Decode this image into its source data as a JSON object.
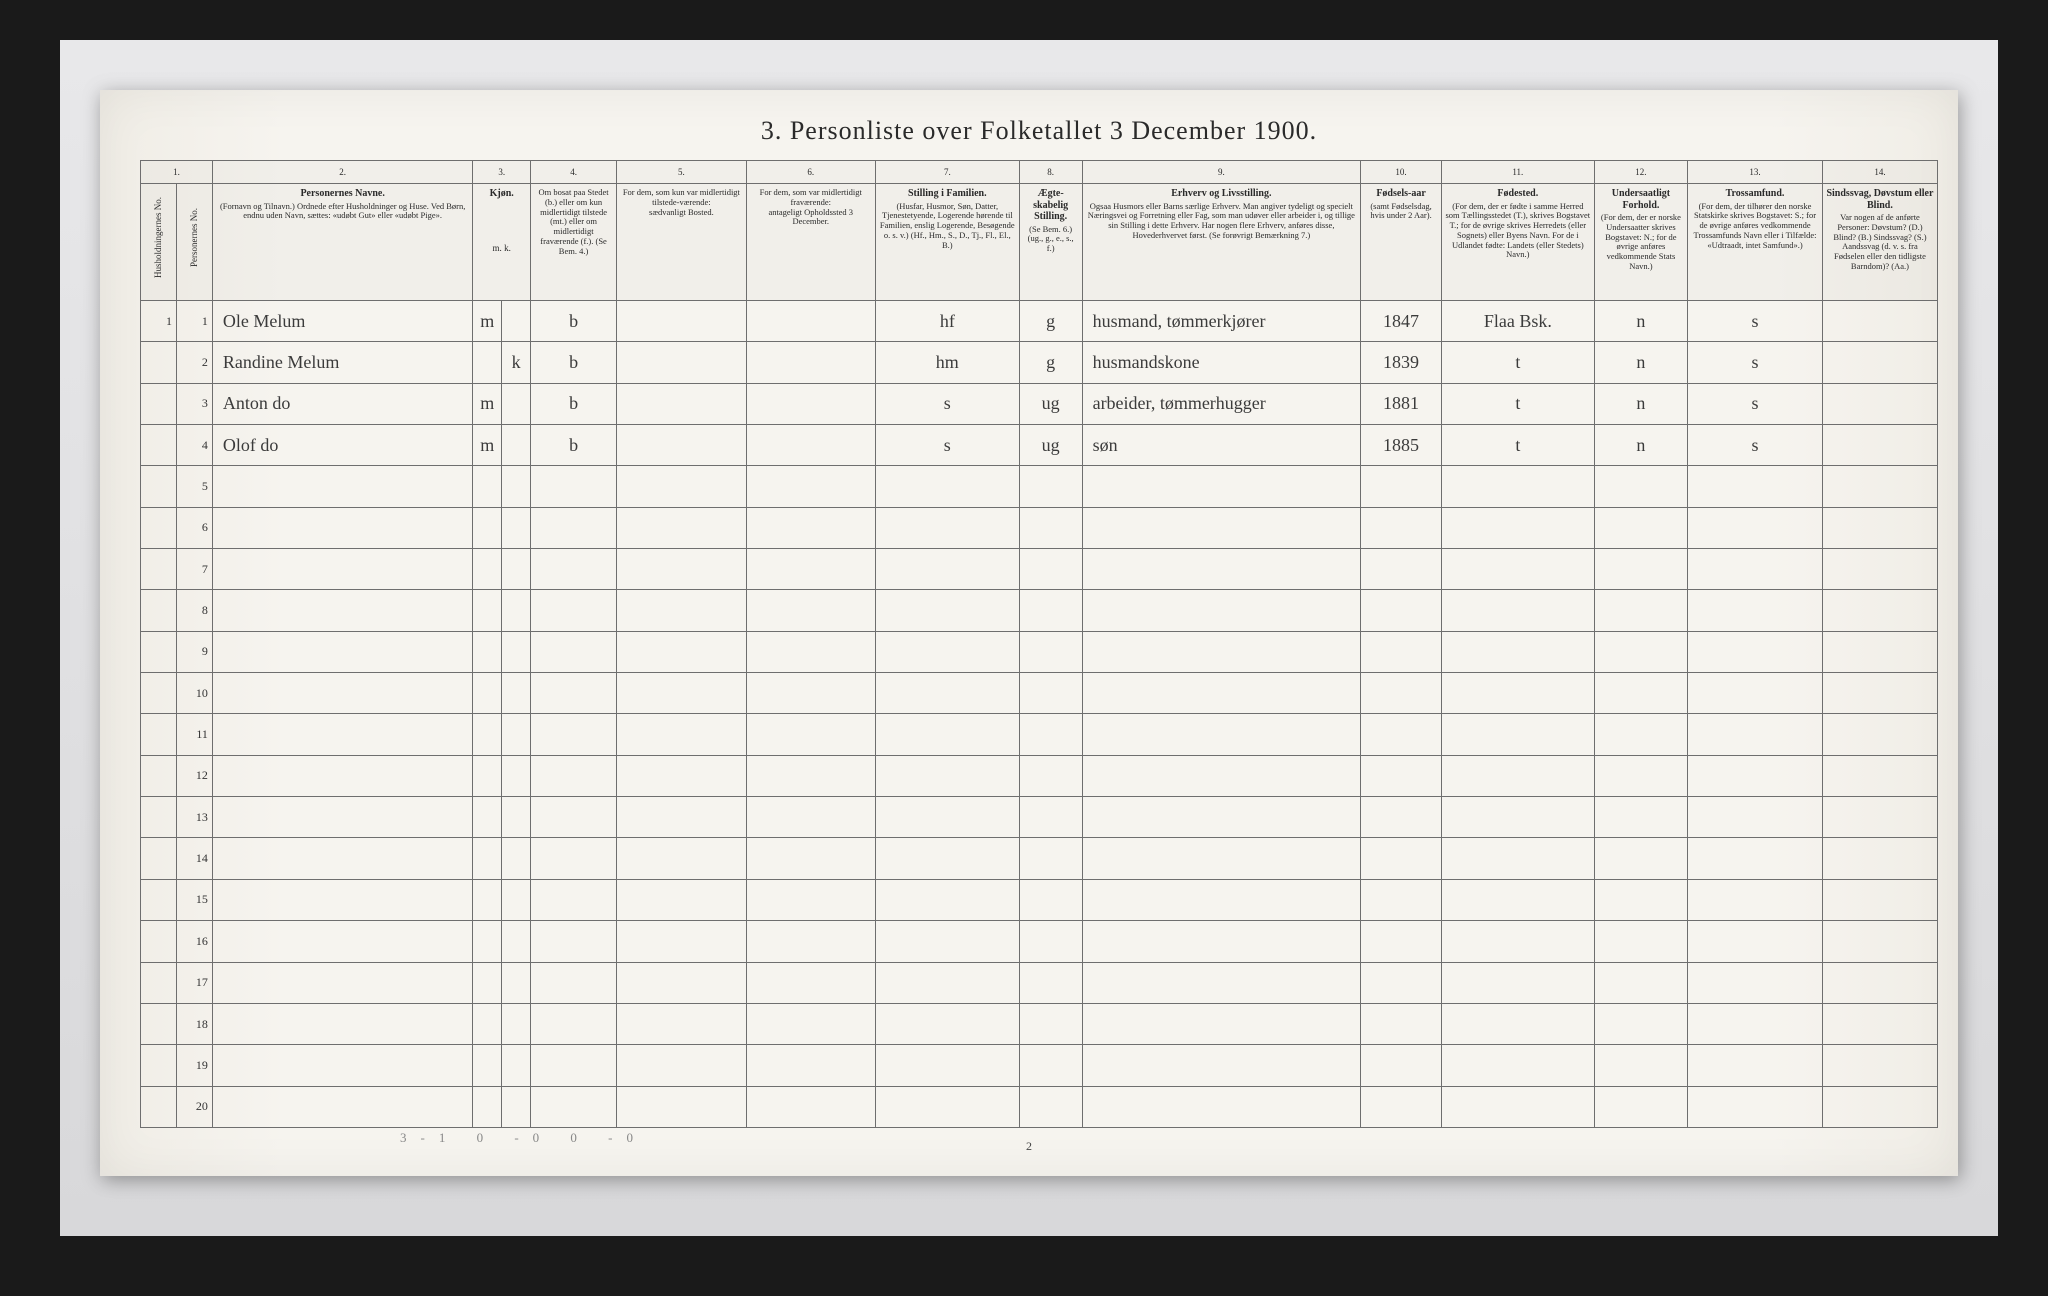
{
  "title": "3. Personliste over Folketallet 3 December 1900.",
  "page_number": "2",
  "footer_marks": "3-1   0 -0   0 -0",
  "columns": {
    "c1a": {
      "num": "1.",
      "head": "Husholdningernes No."
    },
    "c1b": {
      "head": "Personernes No."
    },
    "c2": {
      "num": "2.",
      "head": "Personernes Navne.",
      "sub": "(Fornavn og Tilnavn.)\nOrdnede efter Husholdninger og Huse.\nVed Børn, endnu uden Navn, sættes: «udøbt Gut» eller «udøbt Pige»."
    },
    "c3": {
      "num": "3.",
      "head": "Kjøn.",
      "m": "m.",
      "k": "k."
    },
    "c4": {
      "num": "4.",
      "head": "Om bosat paa Stedet (b.)\neller om kun midlertidigt tilstede (mt.)\neller om midlertidigt fraværende (f.).\n(Se Bem. 4.)"
    },
    "c5": {
      "num": "5.",
      "head": "For dem, som kun var midlertidigt tilstede-værende:",
      "sub": "sædvanligt Bosted."
    },
    "c6": {
      "num": "6.",
      "head": "For dem, som var midlertidigt fraværende:",
      "sub": "antageligt Opholdssted 3 December."
    },
    "c7": {
      "num": "7.",
      "head": "Stilling i Familien.",
      "sub": "(Husfar, Husmor, Søn, Datter, Tjenestetyende, Logerende hørende til Familien, enslig Logerende, Besøgende o. s. v.)\n(Hf., Hm., S., D., Tj., Fl., El., B.)"
    },
    "c8": {
      "num": "8.",
      "head": "Ægte-skabelig Stilling.",
      "sub": "(Se Bem. 6.)\n(ug., g., e., s., f.)"
    },
    "c9": {
      "num": "9.",
      "head": "Erhverv og Livsstilling.",
      "sub": "Ogsaa Husmors eller Barns særlige Erhverv. Man angiver tydeligt og specielt Næringsvei og Forretning eller Fag, som man udøver eller arbeider i, og tillige sin Stilling i dette Erhverv. Har nogen flere Erhverv, anføres disse, Hovederhvervet først.\n(Se forøvrigt Bemærkning 7.)"
    },
    "c10": {
      "num": "10.",
      "head": "Fødsels-aar",
      "sub": "(samt Fødselsdag, hvis under 2 Aar)."
    },
    "c11": {
      "num": "11.",
      "head": "Fødested.",
      "sub": "(For dem, der er fødte i samme Herred som Tællingsstedet (T.), skrives Bogstavet T.; for de øvrige skrives Herredets (eller Sognets) eller Byens Navn. For de i Udlandet fødte: Landets (eller Stedets) Navn.)"
    },
    "c12": {
      "num": "12.",
      "head": "Undersaatligt Forhold.",
      "sub": "(For dem, der er norske Undersaatter skrives Bogstavet: N.; for de øvrige anføres vedkommende Stats Navn.)"
    },
    "c13": {
      "num": "13.",
      "head": "Trossamfund.",
      "sub": "(For dem, der tilhører den norske Statskirke skrives Bogstavet: S.; for de øvrige anføres vedkommende Trossamfunds Navn eller i Tilfælde: «Udtraadt, intet Samfund».)"
    },
    "c14": {
      "num": "14.",
      "head": "Sindssvag, Døvstum eller Blind.",
      "sub": "Var nogen af de anførte Personer:\nDøvstum? (D.)\nBlind? (B.)\nSindssvag? (S.)\nAandssvag (d. v. s. fra Fødselen eller den tidligste Barndom)? (Aa.)"
    }
  },
  "rows": [
    {
      "n": "1",
      "hh": "1",
      "name": "Ole Melum",
      "sex": "m",
      "res": "b",
      "c5": "",
      "c6": "",
      "fam": "hf",
      "civ": "g",
      "occ": "husmand, tømmerkjører",
      "yr": "1847",
      "born": "Flaa Bsk.",
      "nat": "n",
      "rel": "s",
      "c14": ""
    },
    {
      "n": "2",
      "hh": "",
      "name": "Randine Melum",
      "sex": "k",
      "res": "b",
      "c5": "",
      "c6": "",
      "fam": "hm",
      "civ": "g",
      "occ": "husmandskone",
      "yr": "1839",
      "born": "t",
      "nat": "n",
      "rel": "s",
      "c14": ""
    },
    {
      "n": "3",
      "hh": "",
      "name": "Anton      do",
      "sex": "m",
      "res": "b",
      "c5": "",
      "c6": "",
      "fam": "s",
      "civ": "ug",
      "occ": "arbeider, tømmerhugger",
      "yr": "1881",
      "born": "t",
      "nat": "n",
      "rel": "s",
      "c14": ""
    },
    {
      "n": "4",
      "hh": "",
      "name": "Olof       do",
      "sex": "m",
      "res": "b",
      "c5": "",
      "c6": "",
      "fam": "s",
      "civ": "ug",
      "occ": "søn",
      "yr": "1885",
      "born": "t",
      "nat": "n",
      "rel": "s",
      "c14": ""
    },
    {
      "n": "5"
    },
    {
      "n": "6"
    },
    {
      "n": "7"
    },
    {
      "n": "8"
    },
    {
      "n": "9"
    },
    {
      "n": "10"
    },
    {
      "n": "11"
    },
    {
      "n": "12"
    },
    {
      "n": "13"
    },
    {
      "n": "14"
    },
    {
      "n": "15"
    },
    {
      "n": "16"
    },
    {
      "n": "17"
    },
    {
      "n": "18"
    },
    {
      "n": "19"
    },
    {
      "n": "20"
    }
  ],
  "col_widths_pct": [
    2.0,
    2.0,
    14.5,
    1.6,
    1.6,
    4.8,
    7.2,
    7.2,
    8.0,
    3.5,
    15.5,
    4.5,
    8.5,
    5.2,
    7.5,
    6.4
  ]
}
